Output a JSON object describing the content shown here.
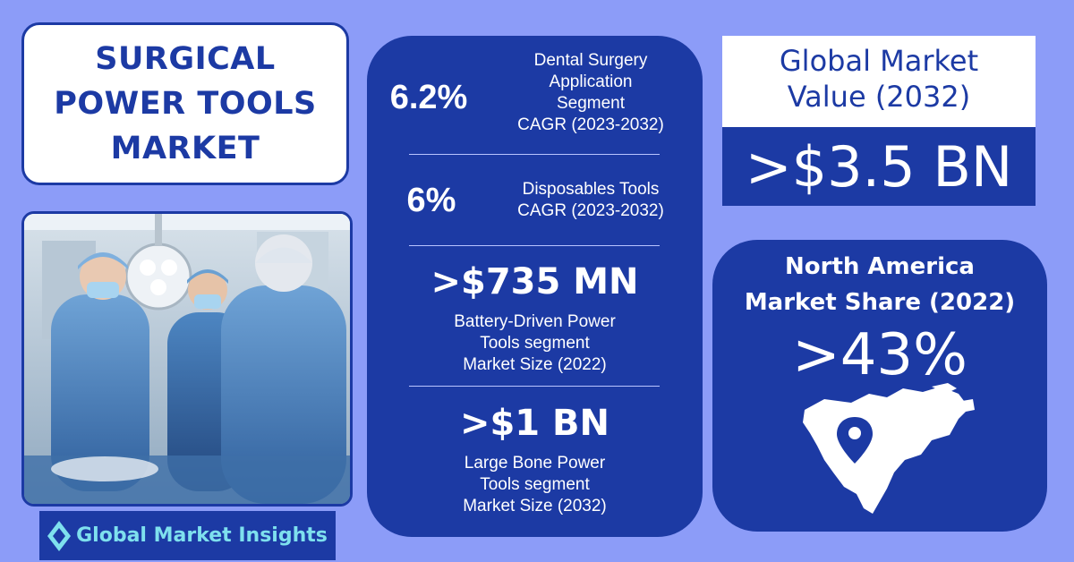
{
  "title": {
    "lines": [
      "SURGICAL",
      "POWER TOOLS",
      "MARKET"
    ]
  },
  "logo": {
    "text": "Global Market Insights",
    "icon": "diamond-logo-icon"
  },
  "center_stats": {
    "dental": {
      "value": "6.2%",
      "label_lines": [
        "Dental Surgery",
        "Application",
        "Segment",
        "CAGR (2023-2032)"
      ]
    },
    "disposables": {
      "value": "6%",
      "label_lines": [
        "Disposables Tools",
        "CAGR (2023-2032)"
      ]
    },
    "battery": {
      "value": ">$735 MN",
      "label_lines": [
        "Battery-Driven Power",
        "Tools segment",
        "Market Size (2022)"
      ]
    },
    "large_bone": {
      "value": ">$1 BN",
      "label_lines": [
        "Large Bone Power",
        "Tools segment",
        "Market Size (2032)"
      ]
    }
  },
  "global_market": {
    "title_lines": [
      "Global Market",
      "Value (2032)"
    ],
    "value": ">$3.5 BN"
  },
  "north_america": {
    "title_lines": [
      "North America",
      "Market Share (2022)"
    ],
    "value": ">43%",
    "map_icon": "north-america-map-icon",
    "pin_icon": "location-pin-icon"
  },
  "colors": {
    "background": "#8c9cf8",
    "primary_blue": "#1c3aa4",
    "white": "#ffffff",
    "logo_text": "#7ee0ee"
  }
}
